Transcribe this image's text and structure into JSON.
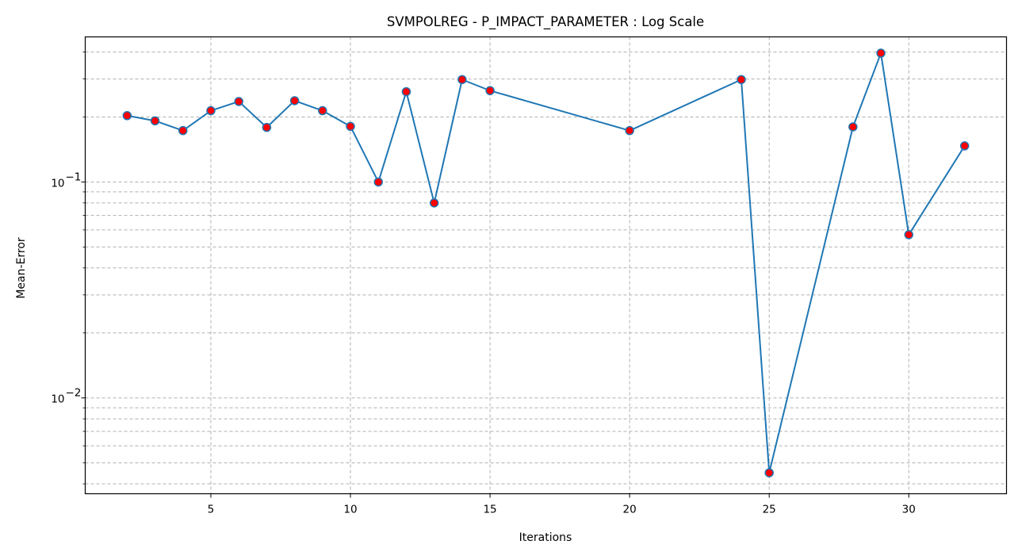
{
  "chart_data": {
    "type": "line",
    "title": "SVMPOLREG - P_IMPACT_PARAMETER : Log Scale",
    "xlabel": "Iterations",
    "ylabel": "Mean-Error",
    "xscale": "linear",
    "yscale": "log",
    "xlim": [
      0.5,
      33.5
    ],
    "ylim": [
      0.0036,
      0.47
    ],
    "x_ticks": [
      5,
      10,
      15,
      20,
      25,
      30
    ],
    "x_tick_labels": [
      "5",
      "10",
      "15",
      "20",
      "25",
      "30"
    ],
    "y_major_ticks": [
      0.01,
      0.1
    ],
    "y_tick_labels": [
      {
        "base": "10",
        "exp": "−2"
      },
      {
        "base": "10",
        "exp": "−1"
      }
    ],
    "y_minor_gridlines": [
      0.004,
      0.005,
      0.006,
      0.007,
      0.008,
      0.009,
      0.02,
      0.03,
      0.04,
      0.05,
      0.06,
      0.07,
      0.08,
      0.09,
      0.2,
      0.3,
      0.4
    ],
    "grid": true,
    "grid_style": "dashed",
    "series": [
      {
        "x": [
          2,
          3,
          4,
          5,
          6,
          7,
          8,
          9,
          10,
          11,
          12,
          13,
          14,
          15,
          20,
          24,
          25,
          28,
          29,
          30,
          32
        ],
        "values": [
          0.203,
          0.192,
          0.173,
          0.214,
          0.236,
          0.179,
          0.238,
          0.214,
          0.181,
          0.1,
          0.262,
          0.08,
          0.298,
          0.265,
          0.173,
          0.298,
          0.0045,
          0.18,
          0.395,
          0.057,
          0.147
        ]
      }
    ],
    "colors": {
      "line": "#1f77b4",
      "marker_face": "#ff0000",
      "marker_edge": "#1f77b4",
      "grid": "#b0b0b0",
      "axis": "#000000"
    }
  }
}
